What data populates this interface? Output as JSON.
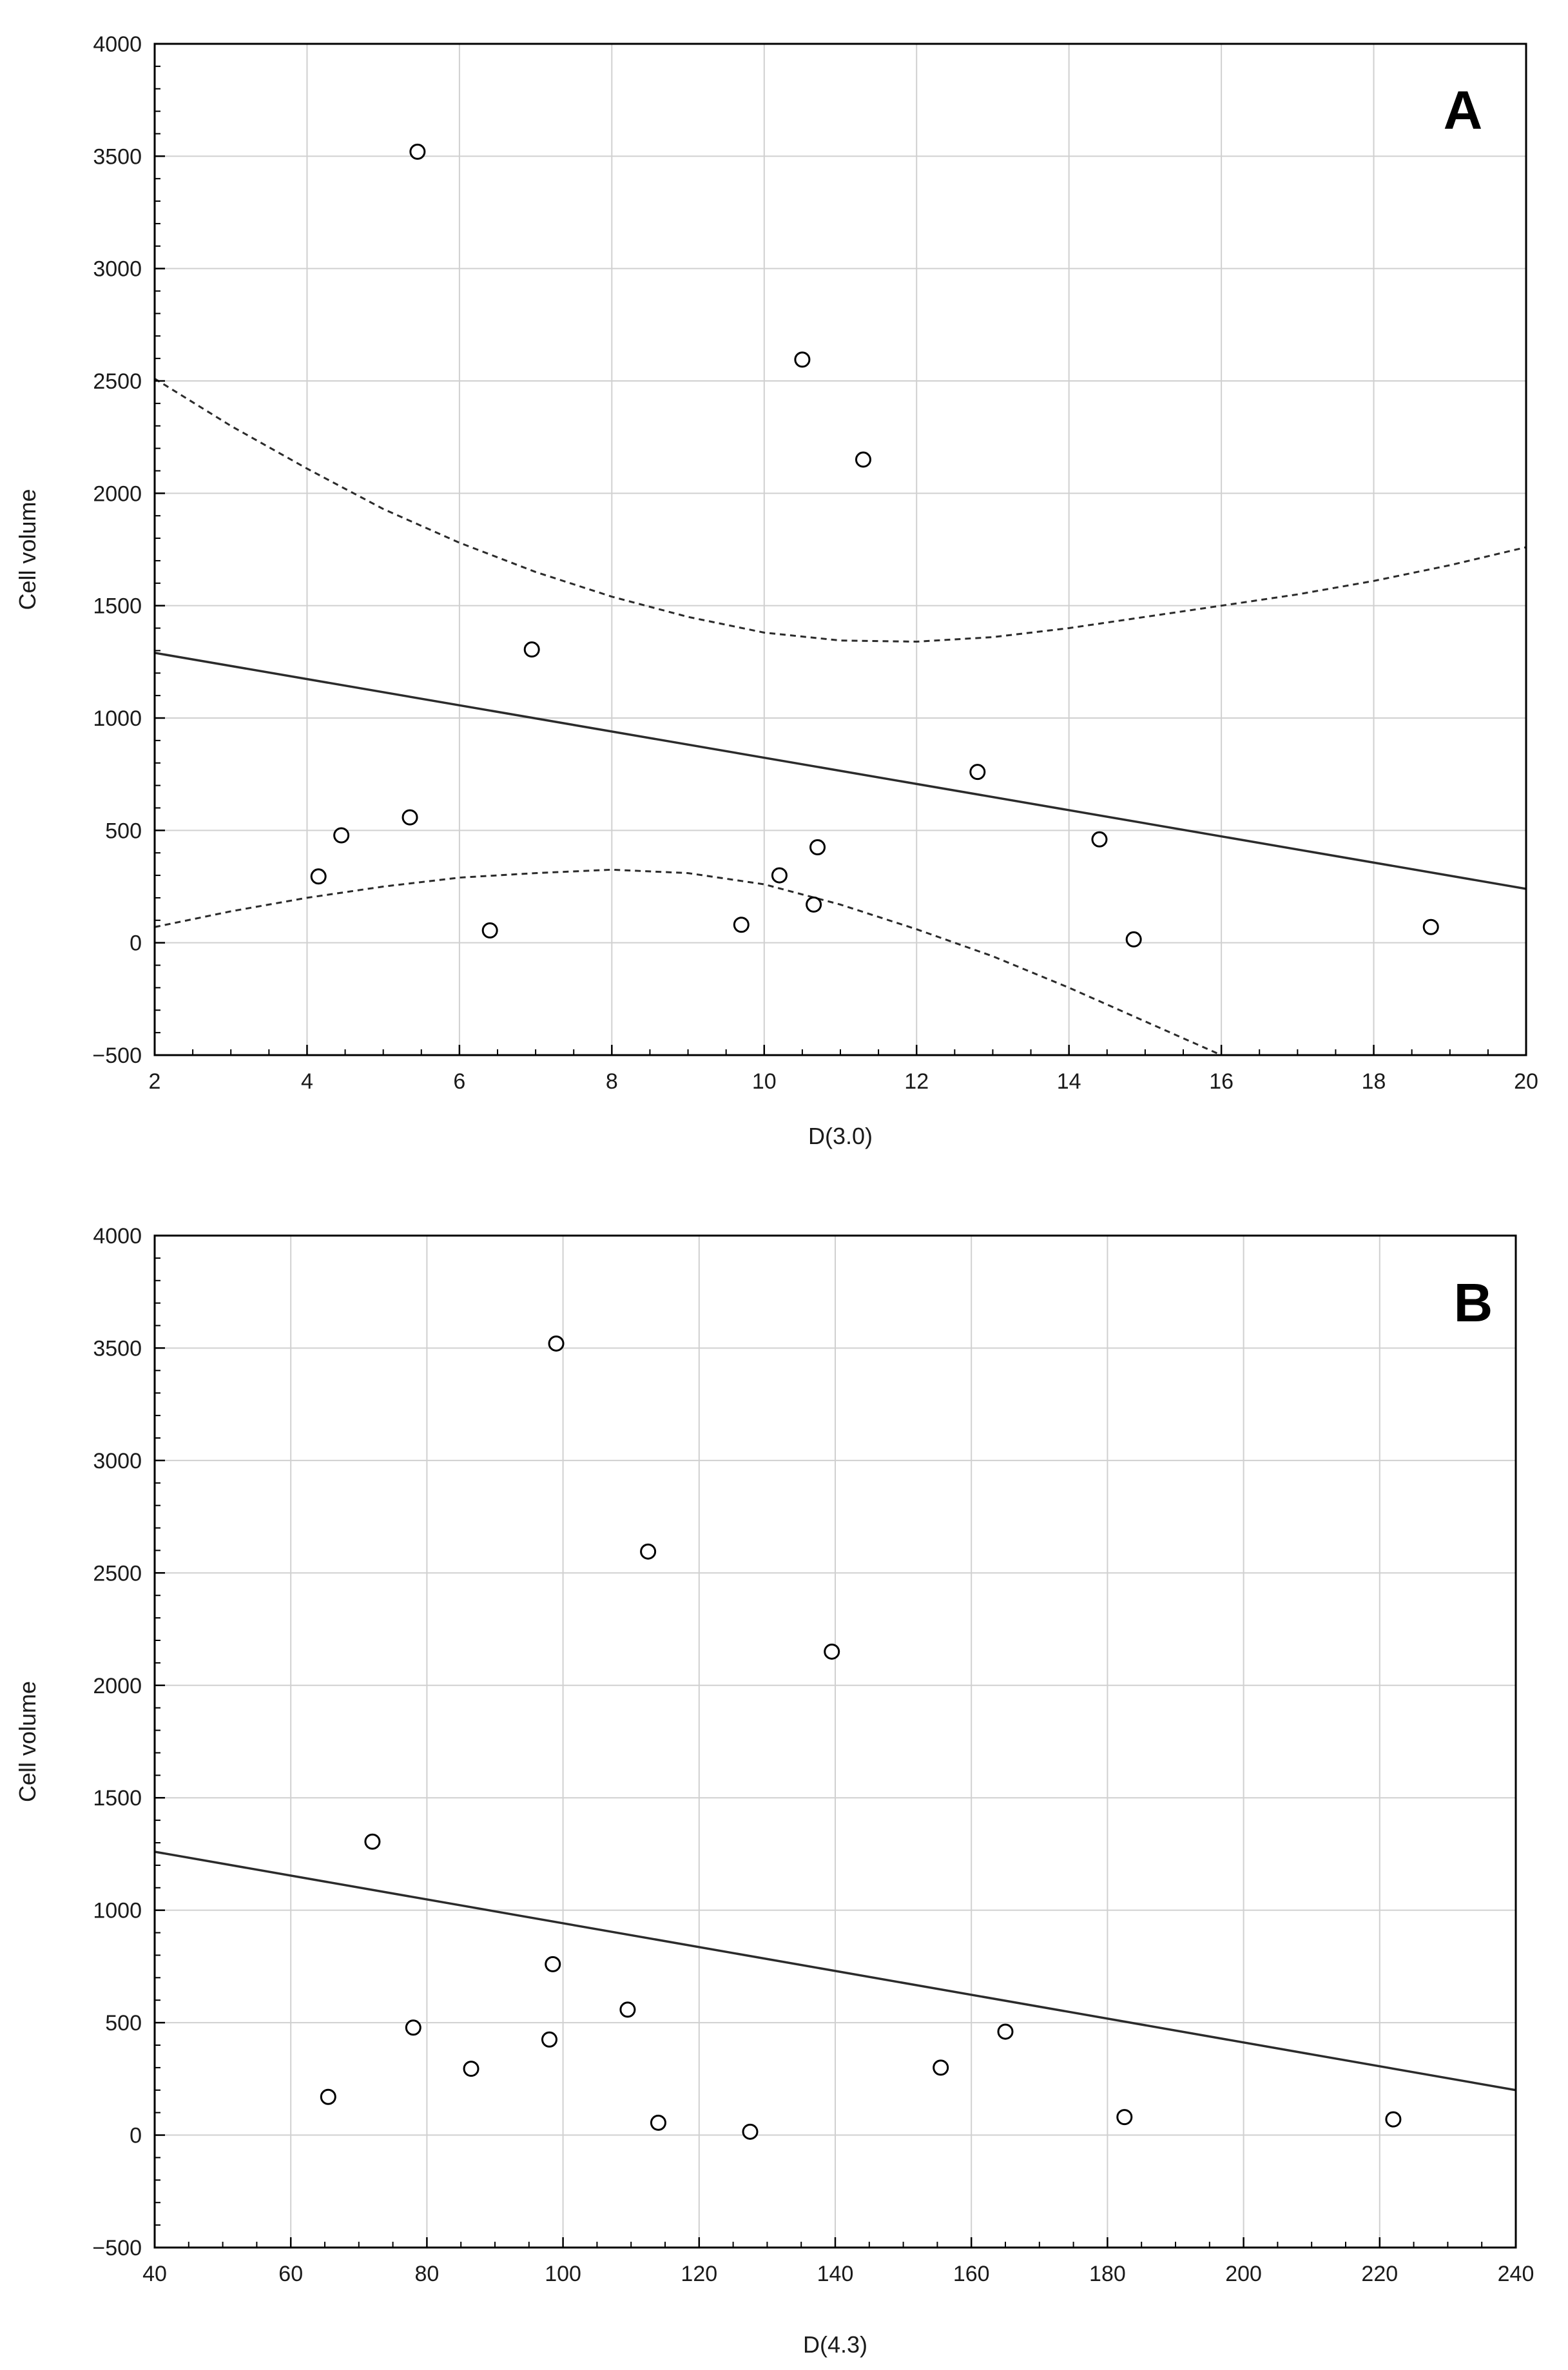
{
  "chart_data": [
    {
      "type": "scatter",
      "panel_label": "A",
      "xlabel": "D(3.0)",
      "ylabel": "Cell volume",
      "xlim": [
        2,
        20
      ],
      "ylim": [
        -500,
        4000
      ],
      "grid": true,
      "xticks": [
        2,
        4,
        6,
        8,
        10,
        12,
        14,
        16,
        18,
        20
      ],
      "yticks": [
        -500,
        0,
        500,
        1000,
        1500,
        2000,
        2500,
        3000,
        3500,
        4000
      ],
      "xtick_labels": [
        "2",
        "4",
        "6",
        "8",
        "10",
        "12",
        "14",
        "16",
        "18",
        "20"
      ],
      "ytick_labels": [
        "−500",
        "0",
        "500",
        "1000",
        "1500",
        "2000",
        "2500",
        "3000",
        "3500",
        "4000"
      ],
      "points": [
        {
          "x": 4.15,
          "y": 295
        },
        {
          "x": 4.45,
          "y": 478
        },
        {
          "x": 5.35,
          "y": 558
        },
        {
          "x": 5.45,
          "y": 3520
        },
        {
          "x": 6.4,
          "y": 55
        },
        {
          "x": 6.95,
          "y": 1305
        },
        {
          "x": 9.7,
          "y": 80
        },
        {
          "x": 10.2,
          "y": 300
        },
        {
          "x": 10.5,
          "y": 2595
        },
        {
          "x": 10.65,
          "y": 170
        },
        {
          "x": 10.7,
          "y": 425
        },
        {
          "x": 11.3,
          "y": 2150
        },
        {
          "x": 12.8,
          "y": 760
        },
        {
          "x": 14.4,
          "y": 460
        },
        {
          "x": 14.85,
          "y": 15
        },
        {
          "x": 18.75,
          "y": 70
        }
      ],
      "fit_line": {
        "x": [
          2,
          20
        ],
        "y": [
          1290,
          240
        ]
      },
      "confidence_upper": {
        "x": [
          2,
          3,
          4,
          5,
          6,
          7,
          8,
          9,
          10,
          11,
          12,
          13,
          14,
          15,
          16,
          17,
          18,
          19,
          20
        ],
        "y": [
          2510,
          2300,
          2110,
          1930,
          1780,
          1650,
          1540,
          1450,
          1380,
          1345,
          1340,
          1360,
          1400,
          1450,
          1500,
          1550,
          1610,
          1680,
          1760
        ]
      },
      "confidence_lower": {
        "x": [
          2,
          3,
          4,
          5,
          6,
          7,
          8,
          9,
          10,
          11,
          12,
          13,
          14,
          15,
          16
        ],
        "y": [
          70,
          140,
          200,
          250,
          290,
          310,
          325,
          310,
          260,
          170,
          60,
          -60,
          -200,
          -350,
          -500
        ]
      }
    },
    {
      "type": "scatter",
      "panel_label": "B",
      "xlabel": "D(4.3)",
      "ylabel": "Cell volume",
      "xlim": [
        40,
        240
      ],
      "ylim": [
        -500,
        4000
      ],
      "grid": true,
      "xticks": [
        40,
        60,
        80,
        100,
        120,
        140,
        160,
        180,
        200,
        220,
        240
      ],
      "yticks": [
        -500,
        0,
        500,
        1000,
        1500,
        2000,
        2500,
        3000,
        3500,
        4000
      ],
      "xtick_labels": [
        "40",
        "60",
        "80",
        "100",
        "120",
        "140",
        "160",
        "180",
        "200",
        "220",
        "240"
      ],
      "ytick_labels": [
        "−500",
        "0",
        "500",
        "1000",
        "1500",
        "2000",
        "2500",
        "3000",
        "3500",
        "4000"
      ],
      "points": [
        {
          "x": 65.5,
          "y": 170
        },
        {
          "x": 72,
          "y": 1305
        },
        {
          "x": 78,
          "y": 478
        },
        {
          "x": 86.5,
          "y": 295
        },
        {
          "x": 98,
          "y": 425
        },
        {
          "x": 98.5,
          "y": 760
        },
        {
          "x": 99,
          "y": 3520
        },
        {
          "x": 109.5,
          "y": 558
        },
        {
          "x": 112.5,
          "y": 2595
        },
        {
          "x": 114,
          "y": 55
        },
        {
          "x": 127.5,
          "y": 15
        },
        {
          "x": 139.5,
          "y": 2150
        },
        {
          "x": 155.5,
          "y": 300
        },
        {
          "x": 165,
          "y": 460
        },
        {
          "x": 182.5,
          "y": 80
        },
        {
          "x": 222,
          "y": 70
        }
      ],
      "fit_line": {
        "x": [
          40,
          240
        ],
        "y": [
          1260,
          200
        ]
      }
    }
  ],
  "colors": {
    "grid": "#d0d0d0",
    "frame": "#000000",
    "line": "#2b2b2b",
    "marker_stroke": "#000000",
    "marker_fill": "#ffffff"
  }
}
